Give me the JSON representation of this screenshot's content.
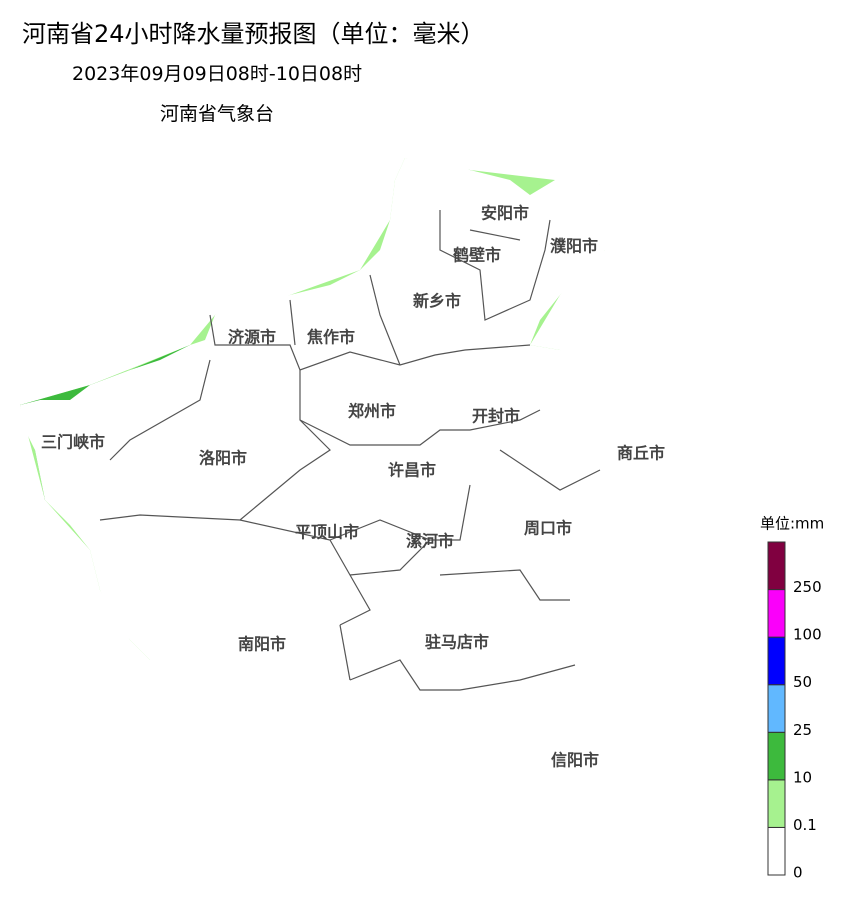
{
  "header": {
    "title": "河南省24小时降水量预报图（单位：毫米）",
    "period": "2023年09月09日08时-10日08时",
    "issuer": "河南省气象台"
  },
  "cities": [
    {
      "label": "安阳市"
    },
    {
      "label": "鹤壁市"
    },
    {
      "label": "濮阳市"
    },
    {
      "label": "新乡市"
    },
    {
      "label": "济源市"
    },
    {
      "label": "焦作市"
    },
    {
      "label": "郑州市"
    },
    {
      "label": "开封市"
    },
    {
      "label": "商丘市"
    },
    {
      "label": "三门峡市"
    },
    {
      "label": "洛阳市"
    },
    {
      "label": "许昌市"
    },
    {
      "label": "平顶山市"
    },
    {
      "label": "漯河市"
    },
    {
      "label": "周口市"
    },
    {
      "label": "南阳市"
    },
    {
      "label": "驻马店市"
    },
    {
      "label": "信阳市"
    }
  ],
  "legend": {
    "title": "单位:mm",
    "bounds": [
      0,
      0.1,
      10,
      25,
      50,
      100,
      250
    ],
    "colors": [
      "#ffffff",
      "#a6f28f",
      "#3dba3d",
      "#61b8ff",
      "#0000fe",
      "#fa00fa",
      "#800040"
    ]
  }
}
